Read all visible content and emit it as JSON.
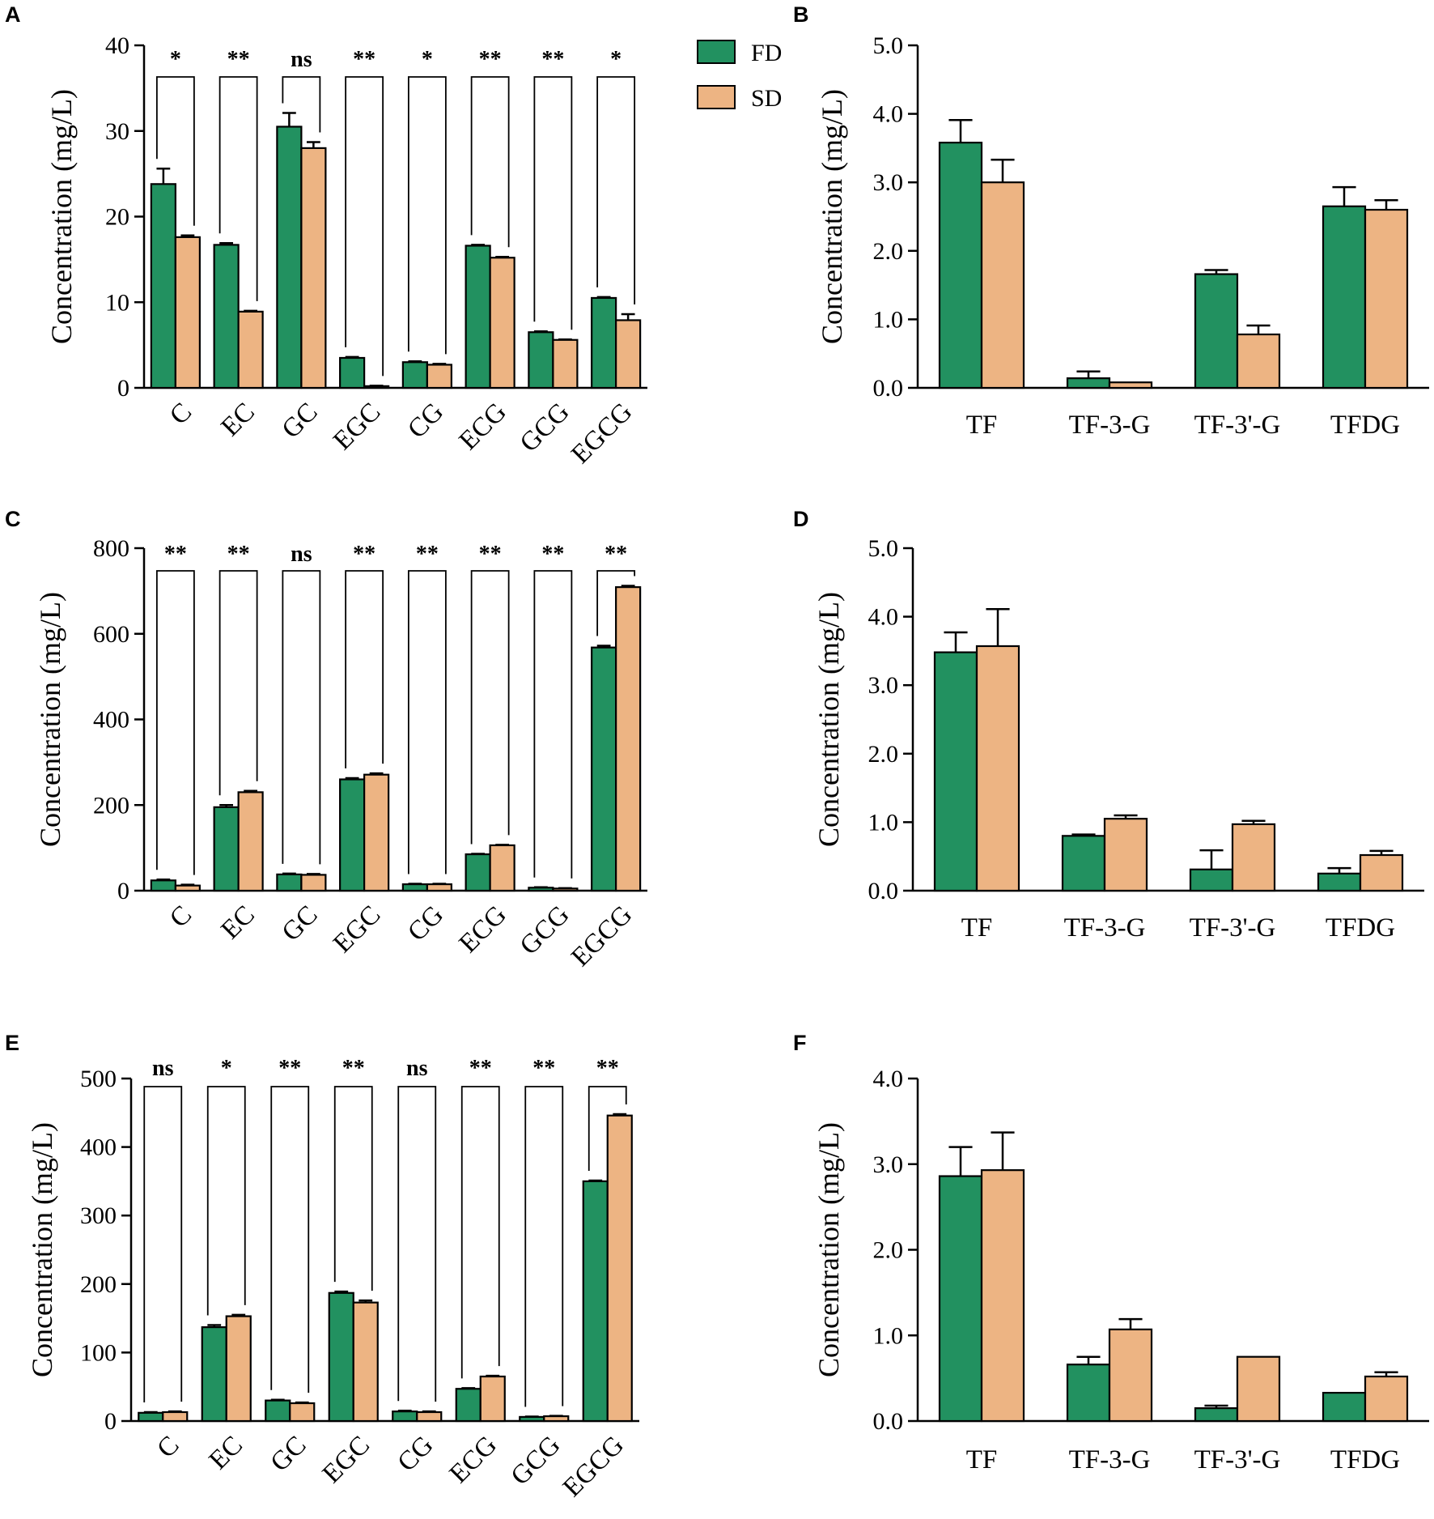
{
  "legend": {
    "entries": [
      {
        "name": "FD",
        "color": "#229160"
      },
      {
        "name": "SD",
        "color": "#EDB483"
      }
    ]
  },
  "chart_data": [
    {
      "id": "A",
      "panel": "A",
      "type": "bar",
      "ylabel": "Concentration (mg/L)",
      "ylim": [
        0,
        40
      ],
      "yticks": [
        "0",
        "10",
        "20",
        "30",
        "40"
      ],
      "categories": [
        "C",
        "EC",
        "GC",
        "EGC",
        "CG",
        "ECG",
        "GCG",
        "EGCG"
      ],
      "series": [
        {
          "name": "FD",
          "values": [
            23.8,
            16.7,
            30.5,
            3.5,
            3.0,
            16.6,
            6.5,
            10.5
          ],
          "errors": [
            1.8,
            0.2,
            1.6,
            0.1,
            0.1,
            0.1,
            0.1,
            0.1
          ]
        },
        {
          "name": "SD",
          "values": [
            17.6,
            8.9,
            28.0,
            0.2,
            2.7,
            15.2,
            5.6,
            7.9
          ],
          "errors": [
            0.2,
            0.1,
            0.7,
            0.05,
            0.1,
            0.1,
            0.05,
            0.7
          ]
        }
      ],
      "significance": [
        "*",
        "**",
        "ns",
        "**",
        "*",
        "**",
        "**",
        "*"
      ]
    },
    {
      "id": "B",
      "panel": "B",
      "type": "bar",
      "ylabel": "Concentration (mg/L)",
      "ylim": [
        0,
        5
      ],
      "yticks": [
        "0.0",
        "1.0",
        "2.0",
        "3.0",
        "4.0",
        "5.0"
      ],
      "categories": [
        "TF",
        "TF-3-G",
        "TF-3'-G",
        "TFDG"
      ],
      "series": [
        {
          "name": "FD",
          "values": [
            3.58,
            0.14,
            1.66,
            2.65
          ],
          "errors": [
            0.33,
            0.1,
            0.06,
            0.28
          ]
        },
        {
          "name": "SD",
          "values": [
            3.0,
            0.08,
            0.78,
            2.6
          ],
          "errors": [
            0.33,
            0.0,
            0.13,
            0.14
          ]
        }
      ]
    },
    {
      "id": "C",
      "panel": "C",
      "type": "bar",
      "ylabel": "Concentration (mg/L)",
      "ylim": [
        0,
        800
      ],
      "yticks": [
        "0",
        "200",
        "400",
        "600",
        "800"
      ],
      "categories": [
        "C",
        "EC",
        "GC",
        "EGC",
        "CG",
        "ECG",
        "GCG",
        "EGCG"
      ],
      "series": [
        {
          "name": "FD",
          "values": [
            24,
            195,
            38,
            260,
            15,
            85,
            7,
            568
          ],
          "errors": [
            2,
            5,
            2,
            3,
            1,
            1,
            1,
            4
          ]
        },
        {
          "name": "SD",
          "values": [
            12,
            230,
            37,
            271,
            15,
            106,
            5,
            709
          ],
          "errors": [
            2,
            3,
            2,
            3,
            1,
            1,
            1,
            3
          ]
        }
      ],
      "significance": [
        "**",
        "**",
        "ns",
        "**",
        "**",
        "**",
        "**",
        "**"
      ]
    },
    {
      "id": "D",
      "panel": "D",
      "type": "bar",
      "ylabel": "Concentration (mg/L)",
      "ylim": [
        0,
        5
      ],
      "yticks": [
        "0.0",
        "1.0",
        "2.0",
        "3.0",
        "4.0",
        "5.0"
      ],
      "categories": [
        "TF",
        "TF-3-G",
        "TF-3'-G",
        "TFDG"
      ],
      "series": [
        {
          "name": "FD",
          "values": [
            3.48,
            0.8,
            0.31,
            0.25
          ],
          "errors": [
            0.29,
            0.02,
            0.28,
            0.08
          ]
        },
        {
          "name": "SD",
          "values": [
            3.57,
            1.05,
            0.97,
            0.52
          ],
          "errors": [
            0.54,
            0.05,
            0.05,
            0.06
          ]
        }
      ]
    },
    {
      "id": "E",
      "panel": "E",
      "type": "bar",
      "ylabel": "Concentration (mg/L)",
      "ylim": [
        0,
        500
      ],
      "yticks": [
        "0",
        "100",
        "200",
        "300",
        "400",
        "500"
      ],
      "categories": [
        "C",
        "EC",
        "GC",
        "EGC",
        "CG",
        "ECG",
        "GCG",
        "EGCG"
      ],
      "series": [
        {
          "name": "FD",
          "values": [
            12,
            137,
            30,
            187,
            14,
            47,
            6,
            350
          ],
          "errors": [
            1,
            3,
            1,
            2,
            1,
            1,
            0.5,
            1
          ]
        },
        {
          "name": "SD",
          "values": [
            13,
            153,
            26,
            173,
            13,
            65,
            7,
            446
          ],
          "errors": [
            1,
            2,
            1,
            3,
            1,
            1,
            0.5,
            2
          ]
        }
      ],
      "significance": [
        "ns",
        "*",
        "**",
        "**",
        "ns",
        "**",
        "**",
        "**"
      ]
    },
    {
      "id": "F",
      "panel": "F",
      "type": "bar",
      "ylabel": "Concentration (mg/L)",
      "ylim": [
        0,
        4
      ],
      "yticks": [
        "0.0",
        "1.0",
        "2.0",
        "3.0",
        "4.0"
      ],
      "categories": [
        "TF",
        "TF-3-G",
        "TF-3'-G",
        "TFDG"
      ],
      "series": [
        {
          "name": "FD",
          "values": [
            2.86,
            0.66,
            0.15,
            0.33
          ],
          "errors": [
            0.34,
            0.09,
            0.03,
            0.0
          ]
        },
        {
          "name": "SD",
          "values": [
            2.93,
            1.07,
            0.75,
            0.52
          ],
          "errors": [
            0.44,
            0.12,
            0.0,
            0.05
          ]
        }
      ]
    }
  ]
}
